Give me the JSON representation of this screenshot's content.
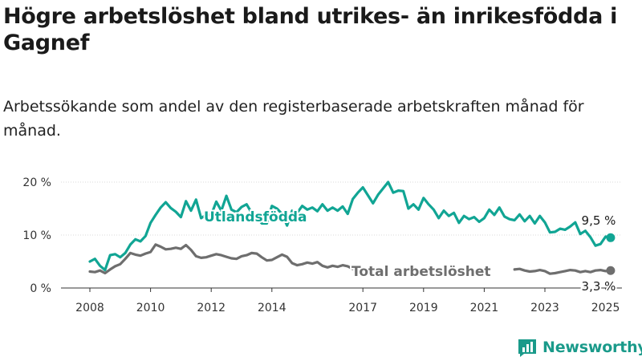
{
  "header": {
    "title": "Högre arbetslöshet bland utrikes- än inrikesfödda i Gagnef",
    "subtitle": "Arbetssökande som andel av den registerbaserade arbetskraften månad för månad."
  },
  "brand": {
    "name": "Newsworthy",
    "icon": "newsworthy-logo-icon",
    "color": "#1a9a8a"
  },
  "chart_data": {
    "type": "line",
    "ylim": [
      0,
      20
    ],
    "y_ticks": [
      {
        "value": 0,
        "label": "0 %"
      },
      {
        "value": 10,
        "label": "10 %"
      },
      {
        "value": 20,
        "label": "20 %"
      }
    ],
    "x_ticks": [
      "2008",
      "2010",
      "2012",
      "2014",
      "2017",
      "2019",
      "2021",
      "2023",
      "2025"
    ],
    "grid": "horizontal",
    "series": [
      {
        "name": "Utlandsfödda",
        "color": "#11a594",
        "end_label": "9,5 %",
        "points": [
          [
            "2008-01",
            5.0
          ],
          [
            "2008-03",
            5.5
          ],
          [
            "2008-05",
            4.2
          ],
          [
            "2008-07",
            3.4
          ],
          [
            "2008-09",
            6.2
          ],
          [
            "2008-11",
            6.4
          ],
          [
            "2009-01",
            5.8
          ],
          [
            "2009-03",
            6.6
          ],
          [
            "2009-05",
            8.2
          ],
          [
            "2009-07",
            9.2
          ],
          [
            "2009-09",
            8.8
          ],
          [
            "2009-11",
            9.8
          ],
          [
            "2010-01",
            12.3
          ],
          [
            "2010-03",
            13.8
          ],
          [
            "2010-05",
            15.2
          ],
          [
            "2010-07",
            16.2
          ],
          [
            "2010-09",
            15.1
          ],
          [
            "2010-11",
            14.4
          ],
          [
            "2011-01",
            13.4
          ],
          [
            "2011-03",
            16.4
          ],
          [
            "2011-05",
            14.6
          ],
          [
            "2011-07",
            16.7
          ],
          [
            "2011-09",
            13.2
          ],
          [
            "2011-11",
            13.8
          ],
          [
            "2012-01",
            13.8
          ],
          [
            "2012-03",
            16.3
          ],
          [
            "2012-05",
            14.6
          ],
          [
            "2012-07",
            17.4
          ],
          [
            "2012-09",
            14.8
          ],
          [
            "2012-11",
            14.3
          ],
          [
            "2013-01",
            15.3
          ],
          [
            "2013-03",
            15.8
          ],
          [
            "2013-05",
            14.2
          ],
          [
            "2013-07",
            13.3
          ],
          [
            "2013-09",
            12.2
          ],
          [
            "2013-11",
            12.2
          ],
          [
            "2014-01",
            15.5
          ],
          [
            "2014-03",
            15.0
          ],
          [
            "2014-05",
            14.0
          ],
          [
            "2014-07",
            11.8
          ],
          [
            "2014-09",
            14.6
          ],
          [
            "2014-11",
            14.2
          ],
          [
            "2015-01",
            15.5
          ],
          [
            "2015-03",
            14.8
          ],
          [
            "2015-05",
            15.2
          ],
          [
            "2015-07",
            14.5
          ],
          [
            "2015-09",
            15.8
          ],
          [
            "2015-11",
            14.6
          ],
          [
            "2016-01",
            15.2
          ],
          [
            "2016-03",
            14.6
          ],
          [
            "2016-05",
            15.4
          ],
          [
            "2016-07",
            14.0
          ],
          [
            "2016-09",
            16.8
          ],
          [
            "2016-11",
            18.0
          ],
          [
            "2017-01",
            19.0
          ],
          [
            "2017-03",
            17.5
          ],
          [
            "2017-05",
            16.0
          ],
          [
            "2017-07",
            17.6
          ],
          [
            "2017-09",
            18.8
          ],
          [
            "2017-11",
            20.0
          ],
          [
            "2018-01",
            18.0
          ],
          [
            "2018-03",
            18.4
          ],
          [
            "2018-05",
            18.3
          ],
          [
            "2018-07",
            15.0
          ],
          [
            "2018-09",
            15.8
          ],
          [
            "2018-11",
            14.8
          ],
          [
            "2019-01",
            17.0
          ],
          [
            "2019-03",
            15.8
          ],
          [
            "2019-05",
            14.8
          ],
          [
            "2019-07",
            13.2
          ],
          [
            "2019-09",
            14.6
          ],
          [
            "2019-11",
            13.6
          ],
          [
            "2020-01",
            14.2
          ],
          [
            "2020-03",
            12.3
          ],
          [
            "2020-05",
            13.6
          ],
          [
            "2020-07",
            13.0
          ],
          [
            "2020-09",
            13.4
          ],
          [
            "2020-11",
            12.5
          ],
          [
            "2021-01",
            13.2
          ],
          [
            "2021-03",
            14.8
          ],
          [
            "2021-05",
            13.8
          ],
          [
            "2021-07",
            15.2
          ],
          [
            "2021-09",
            13.5
          ],
          [
            "2021-11",
            13.0
          ],
          [
            "2022-01",
            12.8
          ],
          [
            "2022-03",
            13.9
          ],
          [
            "2022-05",
            12.6
          ],
          [
            "2022-07",
            13.6
          ],
          [
            "2022-09",
            12.2
          ],
          [
            "2022-11",
            13.6
          ],
          [
            "2023-01",
            12.4
          ],
          [
            "2023-03",
            10.5
          ],
          [
            "2023-05",
            10.6
          ],
          [
            "2023-07",
            11.2
          ],
          [
            "2023-09",
            11.0
          ],
          [
            "2023-11",
            11.6
          ],
          [
            "2024-01",
            12.4
          ],
          [
            "2024-03",
            10.2
          ],
          [
            "2024-05",
            10.8
          ],
          [
            "2024-07",
            9.6
          ],
          [
            "2024-09",
            8.0
          ],
          [
            "2024-11",
            8.3
          ],
          [
            "2025-01",
            9.7
          ],
          [
            "2025-03",
            9.5
          ]
        ]
      },
      {
        "name": "Total arbetslöshet",
        "color": "#6e6e6e",
        "end_label": "3,3 %",
        "points": [
          [
            "2008-01",
            3.1
          ],
          [
            "2008-03",
            3.0
          ],
          [
            "2008-05",
            3.3
          ],
          [
            "2008-07",
            2.8
          ],
          [
            "2008-09",
            3.5
          ],
          [
            "2008-11",
            4.1
          ],
          [
            "2009-01",
            4.5
          ],
          [
            "2009-03",
            5.5
          ],
          [
            "2009-05",
            6.6
          ],
          [
            "2009-07",
            6.3
          ],
          [
            "2009-09",
            6.1
          ],
          [
            "2009-11",
            6.5
          ],
          [
            "2010-01",
            6.8
          ],
          [
            "2010-03",
            8.2
          ],
          [
            "2010-05",
            7.8
          ],
          [
            "2010-07",
            7.3
          ],
          [
            "2010-09",
            7.4
          ],
          [
            "2010-11",
            7.6
          ],
          [
            "2011-01",
            7.4
          ],
          [
            "2011-03",
            8.1
          ],
          [
            "2011-05",
            7.2
          ],
          [
            "2011-07",
            6.0
          ],
          [
            "2011-09",
            5.7
          ],
          [
            "2011-11",
            5.8
          ],
          [
            "2012-01",
            6.1
          ],
          [
            "2012-03",
            6.4
          ],
          [
            "2012-05",
            6.2
          ],
          [
            "2012-07",
            5.9
          ],
          [
            "2012-09",
            5.6
          ],
          [
            "2012-11",
            5.5
          ],
          [
            "2013-01",
            6.0
          ],
          [
            "2013-03",
            6.2
          ],
          [
            "2013-05",
            6.6
          ],
          [
            "2013-07",
            6.5
          ],
          [
            "2013-09",
            5.8
          ],
          [
            "2013-11",
            5.2
          ],
          [
            "2014-01",
            5.3
          ],
          [
            "2014-03",
            5.8
          ],
          [
            "2014-05",
            6.3
          ],
          [
            "2014-07",
            5.9
          ],
          [
            "2014-09",
            4.7
          ],
          [
            "2014-11",
            4.3
          ],
          [
            "2015-01",
            4.5
          ],
          [
            "2015-03",
            4.8
          ],
          [
            "2015-05",
            4.6
          ],
          [
            "2015-07",
            4.9
          ],
          [
            "2015-09",
            4.2
          ],
          [
            "2015-11",
            3.9
          ],
          [
            "2016-01",
            4.2
          ],
          [
            "2016-03",
            4.0
          ],
          [
            "2016-05",
            4.3
          ],
          [
            "2016-07",
            4.1
          ],
          [
            "2016-09",
            3.6
          ],
          [
            "2016-11",
            3.7
          ]
        ]
      },
      {
        "name": "Total arbetslöshet",
        "color": "#6e6e6e",
        "points": [
          [
            "2022-01",
            3.5
          ],
          [
            "2022-03",
            3.6
          ],
          [
            "2022-05",
            3.3
          ],
          [
            "2022-07",
            3.1
          ],
          [
            "2022-09",
            3.2
          ],
          [
            "2022-11",
            3.4
          ],
          [
            "2023-01",
            3.2
          ],
          [
            "2023-03",
            2.7
          ],
          [
            "2023-05",
            2.8
          ],
          [
            "2023-07",
            3.0
          ],
          [
            "2023-09",
            3.2
          ],
          [
            "2023-11",
            3.4
          ],
          [
            "2024-01",
            3.3
          ],
          [
            "2024-03",
            3.0
          ],
          [
            "2024-05",
            3.2
          ],
          [
            "2024-07",
            3.0
          ],
          [
            "2024-09",
            3.3
          ],
          [
            "2024-11",
            3.4
          ],
          [
            "2025-01",
            3.2
          ],
          [
            "2025-03",
            3.3
          ]
        ]
      }
    ]
  }
}
